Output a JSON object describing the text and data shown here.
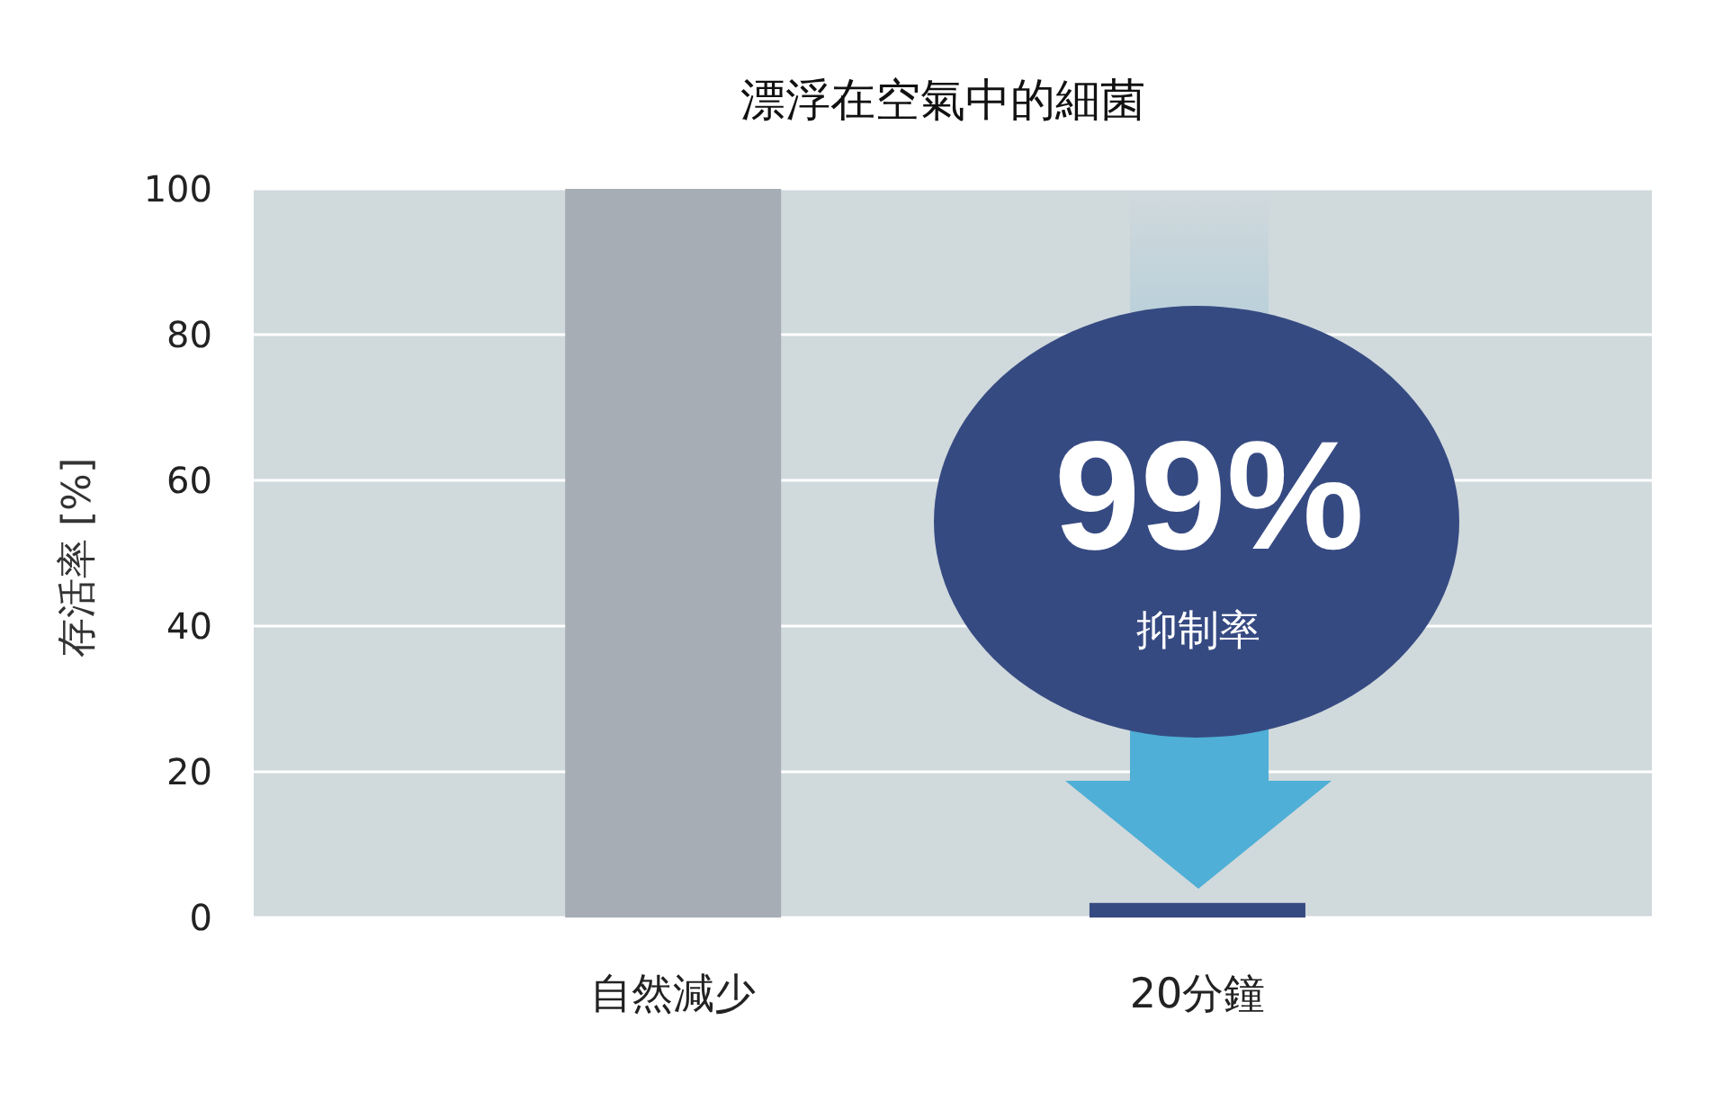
{
  "chart_data": {
    "type": "bar",
    "title": "漂浮在空氣中的細菌",
    "ylabel": "存活率 [%]",
    "categories": [
      "自然減少",
      "20分鐘"
    ],
    "values": [
      100,
      2
    ],
    "colors": [
      "#a6adb4",
      "#364a82"
    ],
    "ylim": [
      0,
      100
    ],
    "yticks": [
      0,
      20,
      40,
      60,
      80,
      100
    ],
    "grid": "y",
    "annotations": [
      "99%",
      "抑制率"
    ]
  }
}
